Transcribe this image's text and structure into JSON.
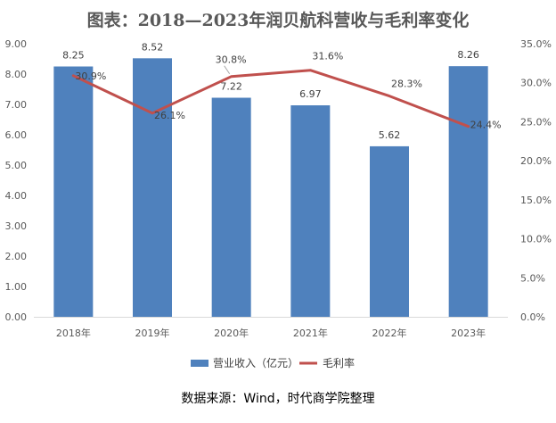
{
  "chart_data": {
    "type": "bar",
    "title": "图表：2018—2023年润贝航科营收与毛利率变化",
    "categories": [
      "2018年",
      "2019年",
      "2020年",
      "2021年",
      "2022年",
      "2023年"
    ],
    "series": [
      {
        "name": "营业收入（亿元）",
        "type": "bar",
        "axis": "left",
        "values": [
          8.25,
          8.52,
          7.22,
          6.97,
          5.62,
          8.26
        ],
        "labels": [
          "8.25",
          "8.52",
          "7.22",
          "6.97",
          "5.62",
          "8.26"
        ],
        "color": "#4f81bd"
      },
      {
        "name": "毛利率",
        "type": "line",
        "axis": "right",
        "values": [
          30.9,
          26.1,
          30.8,
          31.6,
          28.3,
          24.4
        ],
        "labels": [
          "30.9%",
          "26.1%",
          "30.8%",
          "31.6%",
          "28.3%",
          "24.4%"
        ],
        "color": "#c0504d"
      }
    ],
    "y_left": {
      "min": 0,
      "max": 9,
      "step": 1,
      "ticks": [
        "0.00",
        "1.00",
        "2.00",
        "3.00",
        "4.00",
        "5.00",
        "6.00",
        "7.00",
        "8.00",
        "9.00"
      ]
    },
    "y_right": {
      "min": 0,
      "max": 35,
      "step": 5,
      "ticks": [
        "0.0%",
        "5.0%",
        "10.0%",
        "15.0%",
        "20.0%",
        "25.0%",
        "30.0%",
        "35.0%"
      ]
    },
    "legend_position": "bottom",
    "grid": false
  },
  "footer": {
    "source": "数据来源：Wind，时代商学院整理"
  },
  "colors": {
    "axis": "#d9d9d9",
    "text": "#595959"
  }
}
